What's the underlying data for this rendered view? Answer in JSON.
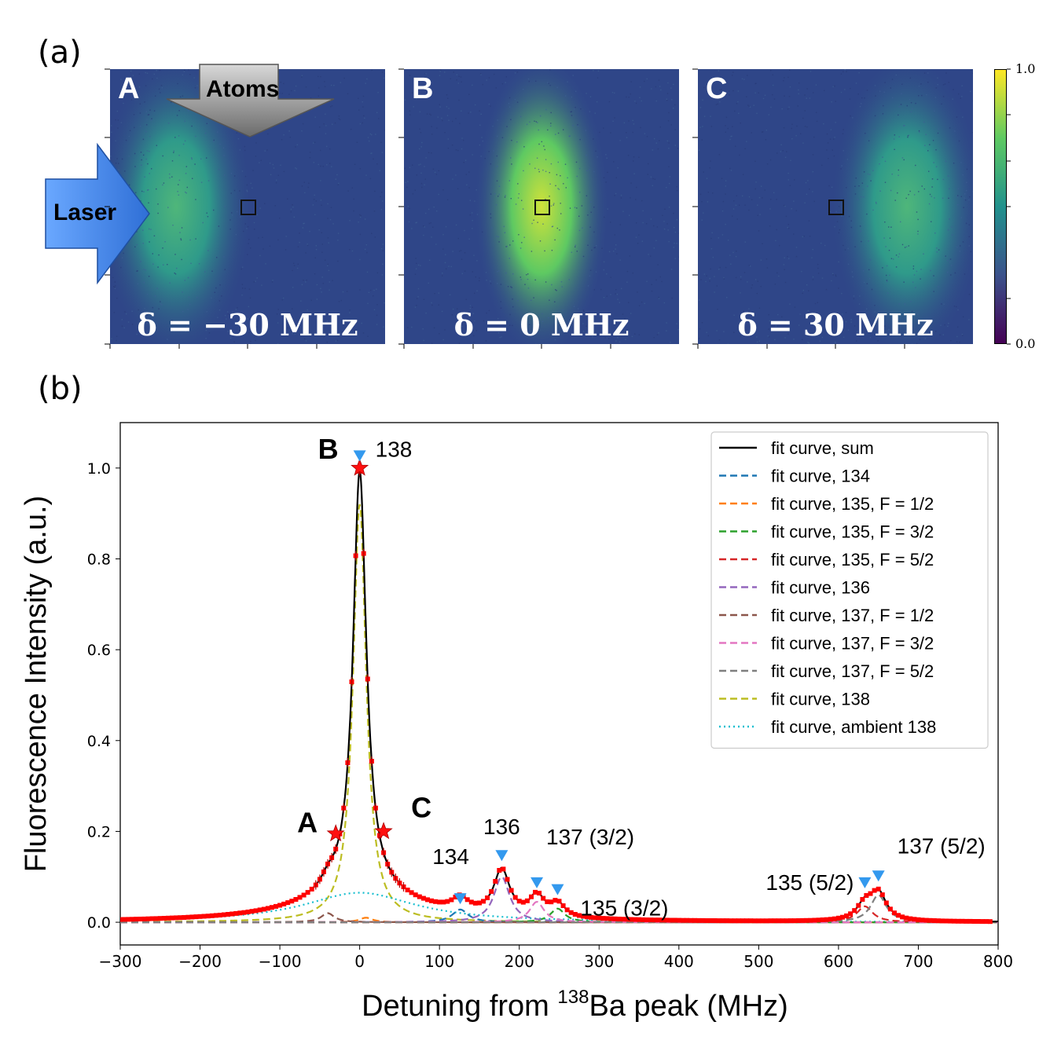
{
  "panel_labels": {
    "a": "(a)",
    "b": "(b)"
  },
  "images": [
    {
      "id": "A",
      "letter": "A",
      "delta_text": "δ = −30 MHz",
      "cloud_position": "left"
    },
    {
      "id": "B",
      "letter": "B",
      "delta_text": "δ = 0 MHz",
      "cloud_position": "center"
    },
    {
      "id": "C",
      "letter": "C",
      "delta_text": "δ = 30 MHz",
      "cloud_position": "right"
    }
  ],
  "arrows": {
    "atoms": "Atoms",
    "laser": "Laser"
  },
  "colorbar": {
    "max": "1.0",
    "min": "0.0",
    "colors": [
      "#440154",
      "#3b528b",
      "#21918c",
      "#5ec962",
      "#fde725"
    ]
  },
  "chart_data": {
    "type": "line",
    "xlabel_parts": {
      "before": "Detuning from ",
      "sup": "138",
      "after": "Ba peak (MHz)"
    },
    "ylabel": "Fluorescence Intensity (a.u.)",
    "xlim": [
      -300,
      800
    ],
    "ylim": [
      -0.05,
      1.1
    ],
    "xticks": [
      -300,
      -200,
      -100,
      0,
      100,
      200,
      300,
      400,
      500,
      600,
      700,
      800
    ],
    "xtick_labels": [
      "−300",
      "−200",
      "−100",
      "0",
      "100",
      "200",
      "300",
      "400",
      "500",
      "600",
      "700",
      "800"
    ],
    "yticks": [
      0.0,
      0.2,
      0.4,
      0.6,
      0.8,
      1.0
    ],
    "ytick_labels": [
      "0.0",
      "0.2",
      "0.4",
      "0.6",
      "0.8",
      "1.0"
    ],
    "peaks": [
      {
        "name": "138",
        "x": 0,
        "height": 0.92,
        "gamma": 10,
        "color": "#bcbd22"
      },
      {
        "name": "ambient 138",
        "x": 0,
        "height": 0.065,
        "gamma": 85,
        "color": "#17becf"
      },
      {
        "name": "134",
        "x": 126,
        "height": 0.028,
        "gamma": 12,
        "color": "#1f77b4"
      },
      {
        "name": "135, F = 1/2",
        "x": 8,
        "height": 0.01,
        "gamma": 10,
        "color": "#ff7f0e"
      },
      {
        "name": "135, F = 3/2",
        "x": 248,
        "height": 0.03,
        "gamma": 11,
        "color": "#2ca02c"
      },
      {
        "name": "135, F = 5/2",
        "x": 633,
        "height": 0.035,
        "gamma": 12,
        "color": "#d62728"
      },
      {
        "name": "136",
        "x": 178,
        "height": 0.1,
        "gamma": 12,
        "color": "#9467bd"
      },
      {
        "name": "137, F = 1/2",
        "x": -40,
        "height": 0.02,
        "gamma": 10,
        "color": "#8c564b"
      },
      {
        "name": "137, F = 3/2",
        "x": 222,
        "height": 0.045,
        "gamma": 11,
        "color": "#e377c2"
      },
      {
        "name": "137, F = 5/2",
        "x": 650,
        "height": 0.06,
        "gamma": 12,
        "color": "#7f7f7f"
      }
    ],
    "legend": [
      {
        "label": "fit curve, sum",
        "color": "#000000",
        "style": "solid"
      },
      {
        "label": "fit curve, 134",
        "color": "#1f77b4",
        "style": "dashed"
      },
      {
        "label": "fit curve, 135, F = 1/2",
        "color": "#ff7f0e",
        "style": "dashed"
      },
      {
        "label": "fit curve, 135, F = 3/2",
        "color": "#2ca02c",
        "style": "dashed"
      },
      {
        "label": "fit curve, 135, F = 5/2",
        "color": "#d62728",
        "style": "dashed"
      },
      {
        "label": "fit curve, 136",
        "color": "#9467bd",
        "style": "dashed"
      },
      {
        "label": "fit curve, 137, F = 1/2",
        "color": "#8c564b",
        "style": "dashed"
      },
      {
        "label": "fit curve, 137, F = 3/2",
        "color": "#e377c2",
        "style": "dashed"
      },
      {
        "label": "fit curve, 137, F = 5/2",
        "color": "#7f7f7f",
        "style": "dashed"
      },
      {
        "label": "fit curve, 138",
        "color": "#bcbd22",
        "style": "dashed"
      },
      {
        "label": "fit curve, ambient 138",
        "color": "#17becf",
        "style": "dotted"
      }
    ],
    "data_points_color": "#ff0000",
    "data_range": [
      -300,
      790
    ],
    "data_step": 5,
    "stars": [
      {
        "label": "A",
        "x": -30,
        "y": 0.195
      },
      {
        "label": "B",
        "x": 0,
        "y": 1.0
      },
      {
        "label": "C",
        "x": 30,
        "y": 0.2
      }
    ],
    "peak_markers": [
      {
        "label": "138",
        "x": 0,
        "y": 1.025
      },
      {
        "label": "134",
        "x": 126,
        "y": 0.05
      },
      {
        "label": "136",
        "x": 178,
        "y": 0.145
      },
      {
        "label": "137 (3/2)",
        "x": 222,
        "y": 0.085
      },
      {
        "label": "135 (3/2)",
        "x": 248,
        "y": 0.07
      },
      {
        "label": "135 (5/2)",
        "x": 633,
        "y": 0.085
      },
      {
        "label": "137 (5/2)",
        "x": 650,
        "y": 0.1
      }
    ],
    "marker_color": "#3399ee"
  }
}
